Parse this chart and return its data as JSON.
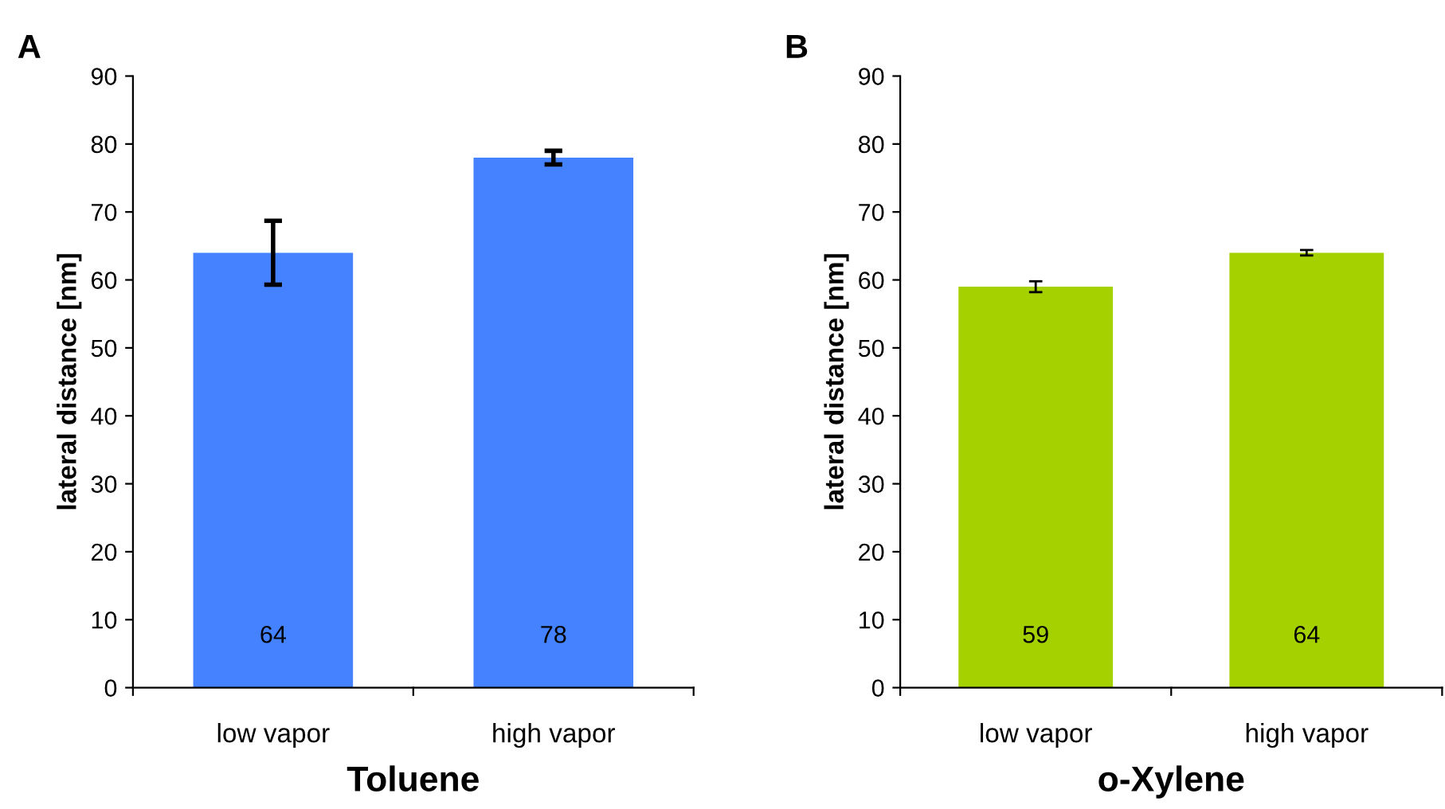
{
  "chart_data": [
    {
      "type": "bar",
      "categories": [
        "low vapor",
        "high vapor"
      ],
      "values": [
        64,
        78
      ],
      "errors": [
        4.7,
        1
      ],
      "color": "#4482ff",
      "xlabel": "Toluene",
      "ylabel": "lateral distance [nm]",
      "ylim": [
        0,
        90
      ],
      "yticks": [
        0,
        10,
        20,
        30,
        40,
        50,
        60,
        70,
        80,
        90
      ],
      "data_labels": true,
      "grid": false,
      "legend": false,
      "annotations": [
        "A"
      ]
    },
    {
      "type": "bar",
      "categories": [
        "low vapor",
        "high vapor"
      ],
      "values": [
        59,
        64
      ],
      "errors": [
        0.8,
        0.4
      ],
      "color": "#a6d100",
      "xlabel": "o-Xylene",
      "ylabel": "lateral distance [nm]",
      "ylim": [
        0,
        90
      ],
      "yticks": [
        0,
        10,
        20,
        30,
        40,
        50,
        60,
        70,
        80,
        90
      ],
      "data_labels": true,
      "grid": false,
      "legend": false,
      "annotations": [
        "B"
      ]
    }
  ]
}
